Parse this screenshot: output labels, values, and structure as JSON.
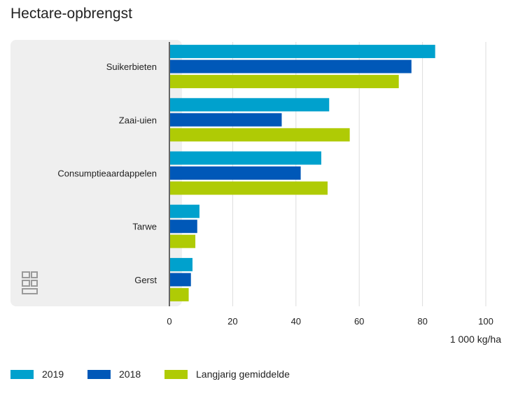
{
  "chart_data": {
    "type": "bar",
    "orientation": "horizontal",
    "title": "Hectare-opbrengst",
    "categories": [
      "Suikerbieten",
      "Zaai-uien",
      "Consumptieaardappelen",
      "Tarwe",
      "Gerst"
    ],
    "series": [
      {
        "name": "2019",
        "color": "#00a1cd",
        "values": [
          84,
          50.5,
          48,
          9.5,
          7.3
        ]
      },
      {
        "name": "2018",
        "color": "#0058b8",
        "values": [
          76.5,
          35.5,
          41.5,
          8.8,
          6.8
        ]
      },
      {
        "name": "Langjarig gemiddelde",
        "color": "#afcb05",
        "values": [
          72.5,
          57,
          50,
          8.2,
          6.1
        ]
      }
    ],
    "xlim": [
      0,
      100
    ],
    "xticks": [
      0,
      20,
      40,
      60,
      80,
      100
    ],
    "xlabel": "1 000 kg/ha",
    "grid": true,
    "legend_position": "bottom"
  }
}
